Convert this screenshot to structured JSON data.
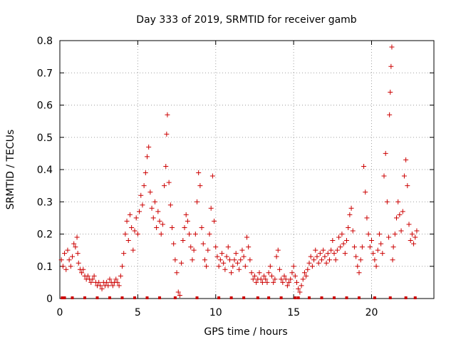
{
  "chart_data": {
    "type": "scatter",
    "title": "Day 333 of 2019, SRMTID for receiver gamb",
    "xlabel": "GPS time / hours",
    "ylabel": "SRMTID / TECUs",
    "xlim": [
      0,
      24
    ],
    "ylim": [
      0,
      0.8
    ],
    "xticks": [
      0,
      5,
      10,
      15,
      20
    ],
    "yticks": [
      0,
      0.1,
      0.2,
      0.3,
      0.4,
      0.5,
      0.6,
      0.7,
      0.8
    ],
    "grid": true,
    "marker": "+",
    "color": "#cc0000",
    "series": [
      {
        "name": "SRMTID",
        "points": [
          [
            0.1,
            0.12
          ],
          [
            0.2,
            0.1
          ],
          [
            0.3,
            0.14
          ],
          [
            0.4,
            0.09
          ],
          [
            0.5,
            0.15
          ],
          [
            0.6,
            0.12
          ],
          [
            0.7,
            0.1
          ],
          [
            0.8,
            0.13
          ],
          [
            0.9,
            0.17
          ],
          [
            1.0,
            0.16
          ],
          [
            1.1,
            0.19
          ],
          [
            1.15,
            0.14
          ],
          [
            1.2,
            0.11
          ],
          [
            1.3,
            0.09
          ],
          [
            1.4,
            0.08
          ],
          [
            1.5,
            0.09
          ],
          [
            1.6,
            0.07
          ],
          [
            1.7,
            0.06
          ],
          [
            1.8,
            0.07
          ],
          [
            1.9,
            0.06
          ],
          [
            2.0,
            0.05
          ],
          [
            2.1,
            0.06
          ],
          [
            2.2,
            0.07
          ],
          [
            2.3,
            0.05
          ],
          [
            2.4,
            0.04
          ],
          [
            2.5,
            0.05
          ],
          [
            2.6,
            0.04
          ],
          [
            2.7,
            0.03
          ],
          [
            2.8,
            0.05
          ],
          [
            2.9,
            0.04
          ],
          [
            3.0,
            0.05
          ],
          [
            3.1,
            0.04
          ],
          [
            3.2,
            0.06
          ],
          [
            3.3,
            0.05
          ],
          [
            3.4,
            0.04
          ],
          [
            3.5,
            0.05
          ],
          [
            3.6,
            0.06
          ],
          [
            3.7,
            0.05
          ],
          [
            3.8,
            0.04
          ],
          [
            3.9,
            0.07
          ],
          [
            4.0,
            0.1
          ],
          [
            4.1,
            0.14
          ],
          [
            4.2,
            0.2
          ],
          [
            4.3,
            0.24
          ],
          [
            4.4,
            0.18
          ],
          [
            4.5,
            0.26
          ],
          [
            4.6,
            0.22
          ],
          [
            4.7,
            0.15
          ],
          [
            4.8,
            0.21
          ],
          [
            4.9,
            0.25
          ],
          [
            5.0,
            0.2
          ],
          [
            5.1,
            0.27
          ],
          [
            5.2,
            0.32
          ],
          [
            5.3,
            0.29
          ],
          [
            5.4,
            0.35
          ],
          [
            5.5,
            0.39
          ],
          [
            5.6,
            0.44
          ],
          [
            5.7,
            0.47
          ],
          [
            5.8,
            0.33
          ],
          [
            5.9,
            0.28
          ],
          [
            6.0,
            0.25
          ],
          [
            6.1,
            0.3
          ],
          [
            6.2,
            0.22
          ],
          [
            6.3,
            0.27
          ],
          [
            6.4,
            0.24
          ],
          [
            6.5,
            0.2
          ],
          [
            6.6,
            0.23
          ],
          [
            6.7,
            0.35
          ],
          [
            6.8,
            0.41
          ],
          [
            6.85,
            0.51
          ],
          [
            6.9,
            0.57
          ],
          [
            7.0,
            0.36
          ],
          [
            7.1,
            0.29
          ],
          [
            7.2,
            0.22
          ],
          [
            7.3,
            0.17
          ],
          [
            7.4,
            0.12
          ],
          [
            7.5,
            0.08
          ],
          [
            7.6,
            0.02
          ],
          [
            7.7,
            0.01
          ],
          [
            7.8,
            0.11
          ],
          [
            7.9,
            0.18
          ],
          [
            8.0,
            0.22
          ],
          [
            8.1,
            0.26
          ],
          [
            8.2,
            0.24
          ],
          [
            8.3,
            0.2
          ],
          [
            8.4,
            0.16
          ],
          [
            8.5,
            0.12
          ],
          [
            8.6,
            0.15
          ],
          [
            8.7,
            0.2
          ],
          [
            8.8,
            0.3
          ],
          [
            8.9,
            0.39
          ],
          [
            9.0,
            0.35
          ],
          [
            9.1,
            0.22
          ],
          [
            9.2,
            0.17
          ],
          [
            9.3,
            0.12
          ],
          [
            9.4,
            0.1
          ],
          [
            9.5,
            0.15
          ],
          [
            9.6,
            0.2
          ],
          [
            9.7,
            0.28
          ],
          [
            9.8,
            0.38
          ],
          [
            9.9,
            0.24
          ],
          [
            10.0,
            0.16
          ],
          [
            10.1,
            0.13
          ],
          [
            10.2,
            0.1
          ],
          [
            10.3,
            0.12
          ],
          [
            10.4,
            0.14
          ],
          [
            10.5,
            0.11
          ],
          [
            10.6,
            0.09
          ],
          [
            10.7,
            0.13
          ],
          [
            10.8,
            0.16
          ],
          [
            10.9,
            0.12
          ],
          [
            11.0,
            0.08
          ],
          [
            11.1,
            0.1
          ],
          [
            11.2,
            0.12
          ],
          [
            11.3,
            0.14
          ],
          [
            11.4,
            0.11
          ],
          [
            11.5,
            0.09
          ],
          [
            11.6,
            0.12
          ],
          [
            11.7,
            0.15
          ],
          [
            11.8,
            0.13
          ],
          [
            11.9,
            0.1
          ],
          [
            12.0,
            0.19
          ],
          [
            12.1,
            0.16
          ],
          [
            12.2,
            0.12
          ],
          [
            12.3,
            0.08
          ],
          [
            12.4,
            0.06
          ],
          [
            12.5,
            0.07
          ],
          [
            12.6,
            0.05
          ],
          [
            12.7,
            0.06
          ],
          [
            12.8,
            0.08
          ],
          [
            12.9,
            0.06
          ],
          [
            13.0,
            0.05
          ],
          [
            13.1,
            0.07
          ],
          [
            13.2,
            0.06
          ],
          [
            13.3,
            0.05
          ],
          [
            13.4,
            0.08
          ],
          [
            13.5,
            0.1
          ],
          [
            13.6,
            0.07
          ],
          [
            13.7,
            0.05
          ],
          [
            13.8,
            0.06
          ],
          [
            13.9,
            0.13
          ],
          [
            14.0,
            0.15
          ],
          [
            14.1,
            0.09
          ],
          [
            14.2,
            0.06
          ],
          [
            14.3,
            0.05
          ],
          [
            14.4,
            0.07
          ],
          [
            14.5,
            0.06
          ],
          [
            14.6,
            0.04
          ],
          [
            14.7,
            0.05
          ],
          [
            14.8,
            0.06
          ],
          [
            14.9,
            0.08
          ],
          [
            15.0,
            0.1
          ],
          [
            15.1,
            0.07
          ],
          [
            15.2,
            0.05
          ],
          [
            15.3,
            0.03
          ],
          [
            15.4,
            0.02
          ],
          [
            15.5,
            0.04
          ],
          [
            15.6,
            0.06
          ],
          [
            15.7,
            0.08
          ],
          [
            15.8,
            0.07
          ],
          [
            15.9,
            0.09
          ],
          [
            16.0,
            0.11
          ],
          [
            16.1,
            0.13
          ],
          [
            16.2,
            0.1
          ],
          [
            16.3,
            0.12
          ],
          [
            16.4,
            0.15
          ],
          [
            16.5,
            0.13
          ],
          [
            16.6,
            0.11
          ],
          [
            16.7,
            0.14
          ],
          [
            16.8,
            0.12
          ],
          [
            16.9,
            0.15
          ],
          [
            17.0,
            0.13
          ],
          [
            17.1,
            0.11
          ],
          [
            17.2,
            0.14
          ],
          [
            17.3,
            0.12
          ],
          [
            17.4,
            0.15
          ],
          [
            17.5,
            0.18
          ],
          [
            17.6,
            0.14
          ],
          [
            17.7,
            0.12
          ],
          [
            17.8,
            0.15
          ],
          [
            17.9,
            0.19
          ],
          [
            18.0,
            0.16
          ],
          [
            18.1,
            0.2
          ],
          [
            18.2,
            0.17
          ],
          [
            18.3,
            0.14
          ],
          [
            18.4,
            0.18
          ],
          [
            18.5,
            0.22
          ],
          [
            18.6,
            0.26
          ],
          [
            18.7,
            0.28
          ],
          [
            18.8,
            0.21
          ],
          [
            18.9,
            0.16
          ],
          [
            19.0,
            0.13
          ],
          [
            19.1,
            0.1
          ],
          [
            19.2,
            0.08
          ],
          [
            19.3,
            0.12
          ],
          [
            19.4,
            0.16
          ],
          [
            19.5,
            0.41
          ],
          [
            19.6,
            0.33
          ],
          [
            19.7,
            0.25
          ],
          [
            19.8,
            0.2
          ],
          [
            19.9,
            0.16
          ],
          [
            20.0,
            0.18
          ],
          [
            20.1,
            0.14
          ],
          [
            20.2,
            0.12
          ],
          [
            20.3,
            0.1
          ],
          [
            20.4,
            0.15
          ],
          [
            20.5,
            0.2
          ],
          [
            20.6,
            0.17
          ],
          [
            20.7,
            0.14
          ],
          [
            20.8,
            0.38
          ],
          [
            20.9,
            0.45
          ],
          [
            21.0,
            0.3
          ],
          [
            21.1,
            0.19
          ],
          [
            21.15,
            0.57
          ],
          [
            21.2,
            0.64
          ],
          [
            21.25,
            0.72
          ],
          [
            21.3,
            0.78
          ],
          [
            21.35,
            0.12
          ],
          [
            21.4,
            0.16
          ],
          [
            21.5,
            0.2
          ],
          [
            21.6,
            0.25
          ],
          [
            21.7,
            0.3
          ],
          [
            21.8,
            0.26
          ],
          [
            21.9,
            0.21
          ],
          [
            22.0,
            0.27
          ],
          [
            22.1,
            0.38
          ],
          [
            22.2,
            0.43
          ],
          [
            22.3,
            0.35
          ],
          [
            22.4,
            0.23
          ],
          [
            22.5,
            0.18
          ],
          [
            22.6,
            0.2
          ],
          [
            22.7,
            0.17
          ],
          [
            22.8,
            0.19
          ],
          [
            22.9,
            0.21
          ]
        ]
      }
    ],
    "zero_markers": [
      0.15,
      0.3,
      0.8,
      1.6,
      2.4,
      3.2,
      4.0,
      4.8,
      5.6,
      6.4,
      7.4,
      8.8,
      10.2,
      11.0,
      11.8,
      12.7,
      13.4,
      14.2,
      15.1,
      15.3,
      16.0,
      16.8,
      17.6,
      18.4,
      19.2,
      20.2,
      21.2,
      22.2,
      22.8
    ]
  }
}
